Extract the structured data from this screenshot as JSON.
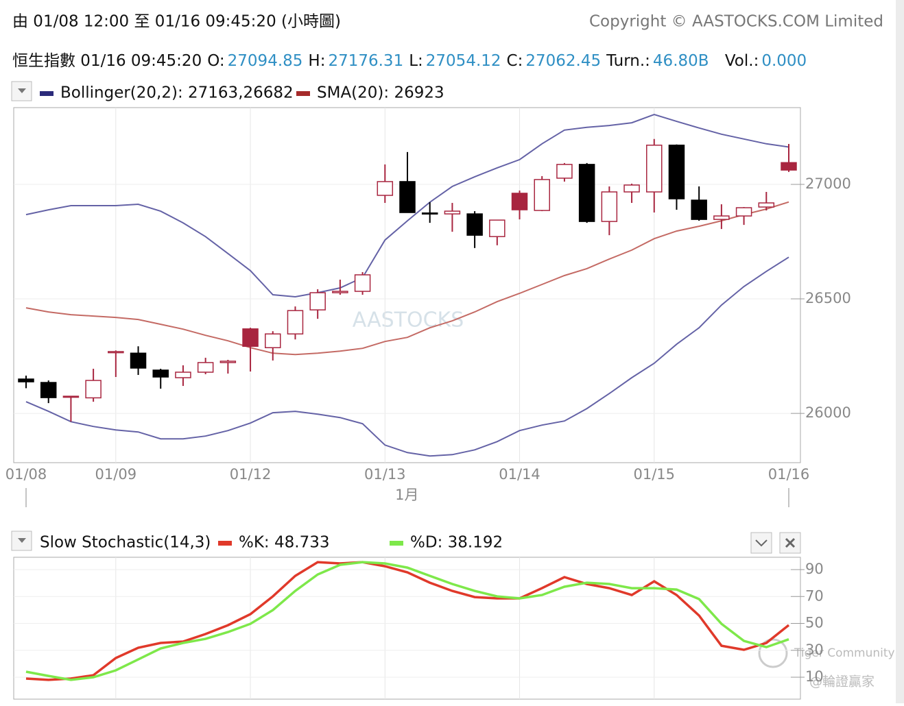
{
  "header": {
    "range": "由  01/08 12:00 至  01/16 09:45:20 (小時圖)",
    "copyright": "Copyright © AASTOCKS.COM Limited",
    "quote_name": "恒生指數 01/16 09:45:20",
    "labels": [
      "O:",
      "H:",
      "L:",
      "C:",
      "Turn.:",
      "Vol.:"
    ],
    "turnover": "46.80B",
    "volume": "0.000"
  },
  "watermarks": [
    "AASTOCKS",
    "Tiger Community",
    "@輪證贏家"
  ],
  "chart_data": [
    {
      "type": "candlestick",
      "categories": [
        "01/08",
        null,
        null,
        null,
        "01/09",
        null,
        null,
        null,
        null,
        null,
        "01/12",
        null,
        null,
        null,
        null,
        null,
        "01/13",
        null,
        null,
        null,
        null,
        null,
        "01/14",
        null,
        null,
        null,
        null,
        null,
        "01/15",
        null,
        null,
        null,
        null,
        null,
        "01/16"
      ],
      "month_label": "1月",
      "open": [
        26150,
        26135,
        26072,
        26068,
        26265,
        26263,
        26189,
        26156,
        26180,
        26222,
        26369,
        26287,
        26347,
        26452,
        26527,
        26533,
        26952,
        27012,
        26875,
        26871,
        26871,
        26772,
        26961,
        26886,
        27027,
        27087,
        26838,
        26967,
        26967,
        27171,
        26931,
        26847,
        26862,
        26901,
        27094.85
      ],
      "high": [
        26165,
        26144,
        26075,
        26195,
        26275,
        26293,
        26195,
        26210,
        26243,
        26234,
        26374,
        26359,
        26467,
        26542,
        26584,
        26617,
        27087,
        27141,
        26922,
        26919,
        26883,
        26844,
        26973,
        27036,
        27093,
        27093,
        26991,
        27003,
        27198,
        27174,
        26991,
        26913,
        26901,
        26967,
        27176.31
      ],
      "low": [
        26110,
        26045,
        25964,
        26051,
        26159,
        26168,
        26108,
        26120,
        26171,
        26174,
        26183,
        26231,
        26323,
        26413,
        26518,
        26518,
        26919,
        26877,
        26832,
        26793,
        26722,
        26734,
        26847,
        26883,
        27012,
        26832,
        26778,
        26919,
        26877,
        26889,
        26841,
        26805,
        26823,
        26886,
        27054.12
      ],
      "close": [
        26138,
        26069,
        26075,
        26144,
        26270,
        26198,
        26159,
        26180,
        26222,
        26228,
        26293,
        26347,
        26449,
        26527,
        26533,
        26605,
        27012,
        26877,
        26871,
        26883,
        26778,
        26844,
        26889,
        27021,
        27087,
        26838,
        26967,
        26997,
        27171,
        26937,
        26847,
        26862,
        26898,
        26919,
        27062.45
      ],
      "up_color": "#a8253f",
      "down_color": "#000000",
      "series": [
        {
          "color": "#6462a6",
          "values": [
            26868,
            26889,
            26907,
            26907,
            26907,
            26913,
            26883,
            26832,
            26772,
            26698,
            26623,
            26518,
            26509,
            26527,
            26548,
            26593,
            26757,
            26841,
            26922,
            26991,
            27033,
            27072,
            27108,
            27177,
            27237,
            27249,
            27257,
            27269,
            27305,
            27275,
            27246,
            27219,
            27198,
            27177,
            27163
          ]
        },
        {
          "color": "#6462a6",
          "values": [
            26051,
            26009,
            25964,
            25943,
            25928,
            25919,
            25889,
            25889,
            25901,
            25925,
            25958,
            26003,
            26009,
            25997,
            25982,
            25955,
            25862,
            25829,
            25814,
            25820,
            25841,
            25877,
            25925,
            25949,
            25967,
            26021,
            26087,
            26156,
            26219,
            26302,
            26374,
            26473,
            26554,
            26620,
            26682
          ]
        },
        {
          "color": "#c46a64",
          "values": [
            26461,
            26443,
            26431,
            26425,
            26419,
            26410,
            26389,
            26368,
            26341,
            26317,
            26287,
            26263,
            26257,
            26263,
            26272,
            26284,
            26314,
            26332,
            26374,
            26404,
            26443,
            26488,
            26524,
            26563,
            26602,
            26632,
            26674,
            26713,
            26763,
            26796,
            26817,
            26841,
            26868,
            26892,
            26923
          ]
        }
      ],
      "legend": [
        {
          "text": "Bollinger(20,2): 27163,26682",
          "color": "#2b2a7a"
        },
        {
          "text": "SMA(20): 26923",
          "color": "#a52a2a"
        }
      ],
      "ylim": [
        25785,
        27335
      ],
      "yticks": [
        26000,
        26500,
        27000
      ],
      "grid": true
    },
    {
      "type": "line",
      "series": [
        {
          "color": "#e0392a",
          "values": [
            9.0,
            8.0,
            9.0,
            11.5,
            24.3,
            31.9,
            35.5,
            36.5,
            42.1,
            48.7,
            56.9,
            70.1,
            85.4,
            95.6,
            94.6,
            95.6,
            92.5,
            88.0,
            80.3,
            74.2,
            69.6,
            68.6,
            68.6,
            76.2,
            84.4,
            79.3,
            76.2,
            71.1,
            81.3,
            71.1,
            55.9,
            33.4,
            30.4,
            35.5,
            48.733
          ]
        },
        {
          "color": "#7ee84a",
          "values": [
            14.1,
            11.0,
            8.0,
            10.0,
            15.1,
            23.2,
            31.4,
            35.5,
            38.5,
            43.6,
            49.7,
            59.9,
            74.2,
            86.4,
            93.6,
            95.6,
            94.6,
            91.5,
            85.4,
            79.3,
            74.2,
            70.1,
            68.6,
            71.1,
            77.3,
            80.3,
            79.3,
            76.2,
            76.2,
            75.2,
            68.1,
            49.7,
            37.0,
            32.4,
            38.192
          ]
        }
      ],
      "legend": [
        {
          "text": "Slow Stochastic(14,3)"
        },
        {
          "text": "%K: 48.733",
          "color": "#e0392a"
        },
        {
          "text": "%D: 38.192",
          "color": "#7ee84a"
        }
      ],
      "ylim": [
        -6.3,
        99.2
      ],
      "yticks": [
        10,
        30,
        50,
        70,
        90
      ],
      "grid": true
    }
  ]
}
